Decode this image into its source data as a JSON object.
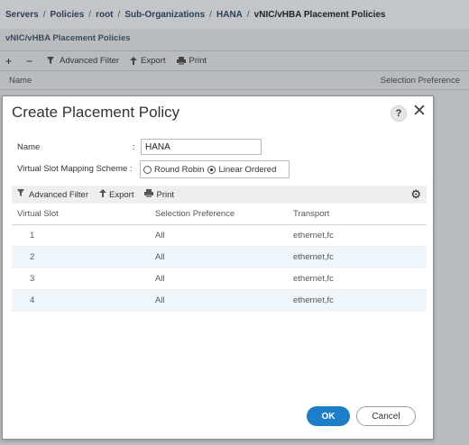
{
  "breadcrumb": {
    "items": [
      "Servers",
      "Policies",
      "root",
      "Sub-Organizations",
      "HANA"
    ],
    "current": "vNIC/vHBA Placement Policies",
    "separator": "/"
  },
  "background": {
    "title": "vNIC/vHBA Placement Policies",
    "toolbar": {
      "add": "+",
      "remove": "−",
      "advanced_filter": "Advanced Filter",
      "export": "Export",
      "print": "Print"
    },
    "columns": {
      "name": "Name",
      "selection_preference": "Selection Preference"
    }
  },
  "dialog": {
    "title": "Create Placement Policy",
    "help": "?",
    "close": "✕",
    "name_label": "Name",
    "name_value": "HANA",
    "colon": ":",
    "scheme_label": "Virtual Slot Mapping Scheme :",
    "scheme_options": [
      {
        "label": "Round Robin",
        "selected": false
      },
      {
        "label": "Linear Ordered",
        "selected": true
      }
    ],
    "toolbar": {
      "advanced_filter": "Advanced Filter",
      "export": "Export",
      "print": "Print"
    },
    "table": {
      "headers": [
        "Virtual Slot",
        "Selection Preference",
        "Transport"
      ],
      "rows": [
        [
          "1",
          "All",
          "ethernet,fc"
        ],
        [
          "2",
          "All",
          "ethernet,fc"
        ],
        [
          "3",
          "All",
          "ethernet,fc"
        ],
        [
          "4",
          "All",
          "ethernet,fc"
        ]
      ]
    },
    "ok_label": "OK",
    "cancel_label": "Cancel"
  },
  "colors": {
    "accent": "#1c7ec9",
    "row_alt": "#eef6fc",
    "background_overlay": "#b9bcbf"
  }
}
